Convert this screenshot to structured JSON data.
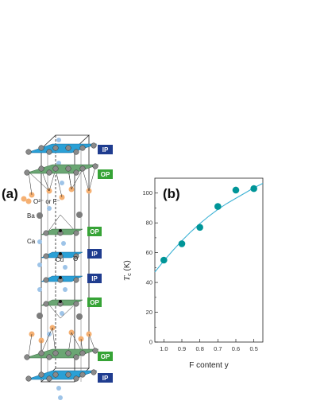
{
  "panel_a": {
    "label": "(a)",
    "atom_labels": {
      "ba": "Ba",
      "ca": "Ca",
      "cu": "Cu",
      "o": "O",
      "o2_f": "O²⁻ or F⁻"
    },
    "layer_tags": [
      "IP",
      "OP",
      "OP",
      "IP",
      "IP",
      "OP",
      "OP",
      "IP"
    ],
    "colors": {
      "ip": "#1f3c8f",
      "op": "#36a336",
      "plane": "#2aa0d6",
      "pyramid": "#6aa673",
      "cu": "#3a3a3a",
      "o": "#8a8a8a",
      "ca": "#9ec4e8",
      "apical": "#f5b072",
      "ba": "#7c7c7c"
    }
  },
  "panel_b": {
    "label": "(b)",
    "axis_title_symbol": "T",
    "axis_title_sub": "c",
    "axis_title_unit": " (K)",
    "xlabel": "F content y"
  },
  "chart_data": {
    "type": "scatter",
    "x": [
      1.0,
      0.9,
      0.8,
      0.7,
      0.6,
      0.5
    ],
    "y": [
      55,
      66,
      77,
      91,
      102,
      103
    ],
    "x_tick_labels": [
      "1.0",
      "0.9",
      "0.8",
      "0.7",
      "0.6",
      "0.5"
    ],
    "y_ticks": [
      0,
      20,
      40,
      60,
      80,
      100
    ],
    "xlim": [
      1.05,
      0.45
    ],
    "ylim": [
      0,
      110
    ],
    "fit_curve": {
      "x": [
        1.05,
        1.0,
        0.95,
        0.9,
        0.85,
        0.8,
        0.75,
        0.7,
        0.65,
        0.6,
        0.55,
        0.5,
        0.45
      ],
      "y": [
        47,
        54.5,
        61.5,
        68,
        74,
        79.5,
        84.5,
        89,
        93,
        96.5,
        100,
        103.5,
        106.5
      ]
    },
    "marker_color": "#009598",
    "line_color": "#3bb1d4",
    "grid": false
  }
}
